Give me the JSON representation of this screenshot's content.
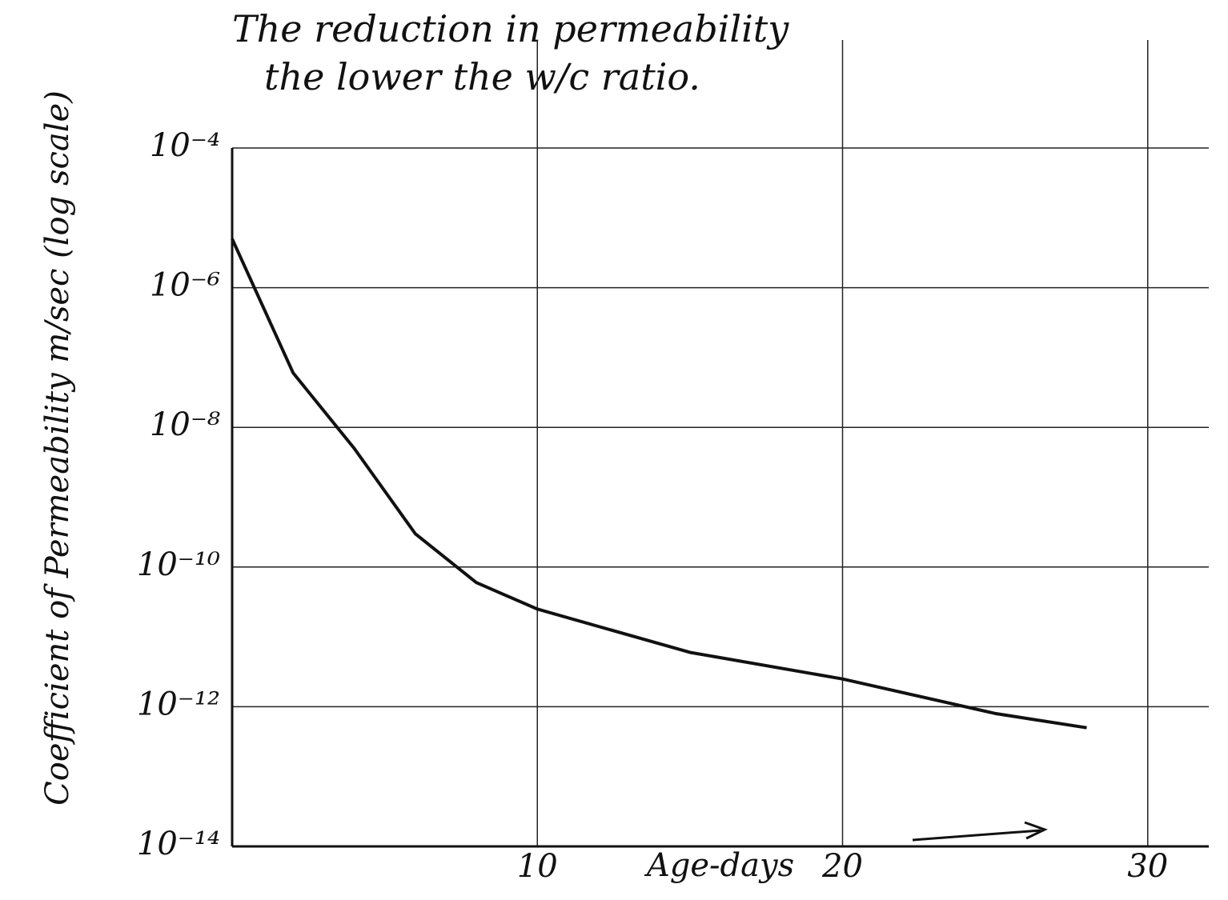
{
  "chart_data": {
    "type": "line",
    "title_lines": [
      "The reduction in permeability",
      "the lower the w/c ratio."
    ],
    "x_label": "Age-days",
    "y_label": "Coefficient of Permeability m/sec (log scale)",
    "x": [
      0,
      2,
      4,
      6,
      8,
      10,
      15,
      20,
      25,
      28
    ],
    "series": [
      {
        "color": "#111111",
        "values": [
          5e-06,
          6e-08,
          5e-09,
          3e-10,
          6e-11,
          2.5e-11,
          6e-12,
          2.5e-12,
          8e-13,
          5e-13
        ]
      }
    ],
    "xlim": [
      0,
      32
    ],
    "xticks": [
      10,
      20,
      30
    ],
    "ylim": [
      1e-14,
      0.0001
    ],
    "yticks": [
      {
        "value": 0.0001,
        "label": "10⁻⁴"
      },
      {
        "value": 1e-06,
        "label": "10⁻⁶"
      },
      {
        "value": 1e-08,
        "label": "10⁻⁸"
      },
      {
        "value": 1e-10,
        "label": "10⁻¹⁰"
      },
      {
        "value": 1e-12,
        "label": "10⁻¹²"
      },
      {
        "value": 1e-14,
        "label": "10⁻¹⁴"
      }
    ],
    "log_y": true,
    "grid": true
  }
}
